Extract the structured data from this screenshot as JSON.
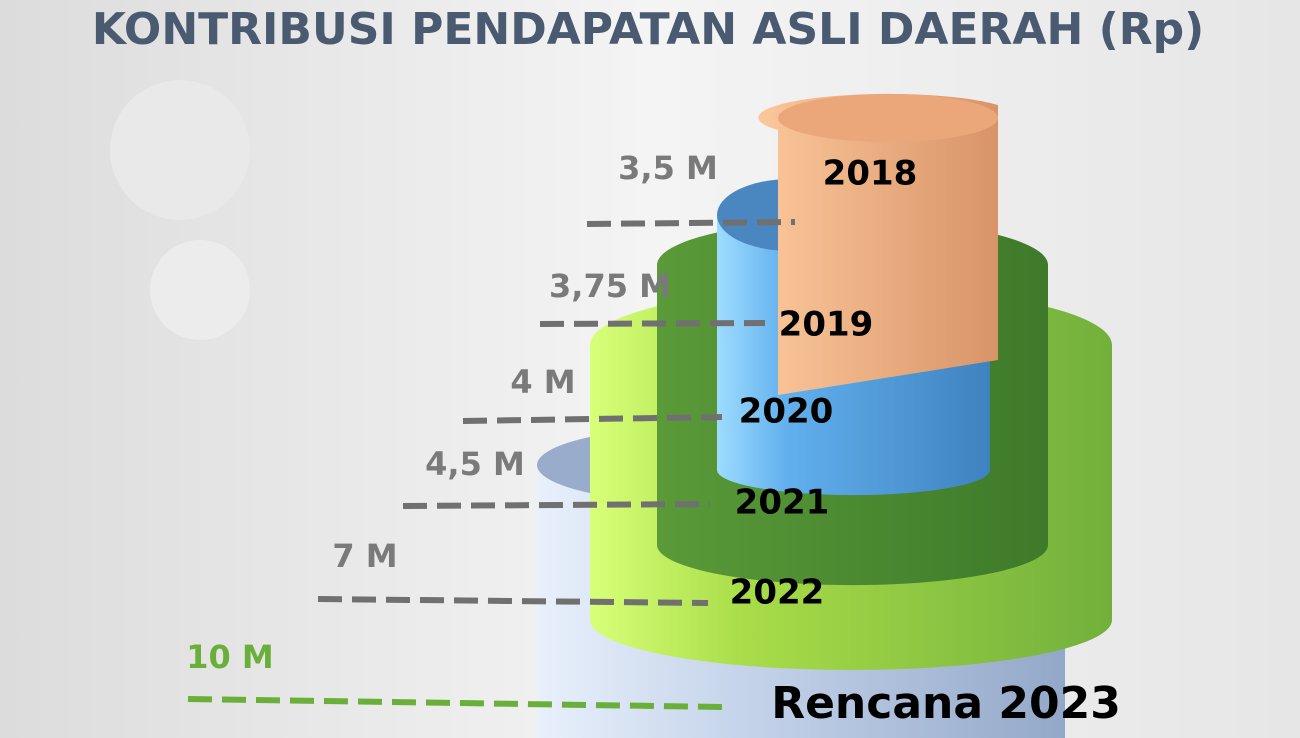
{
  "title": "KONTRIBUSI PENDAPATAN ASLI DAERAH (Rp)",
  "levels": [
    {
      "value_label": "3,5 M",
      "year": "2018"
    },
    {
      "value_label": "3,75 M",
      "year": "2019"
    },
    {
      "value_label": "4 M",
      "year": "2020"
    },
    {
      "value_label": "4,5 M",
      "year": "2021"
    },
    {
      "value_label": "7 M",
      "year": "2022"
    },
    {
      "value_label": "10 M",
      "year": "Rencana 2023"
    }
  ]
}
